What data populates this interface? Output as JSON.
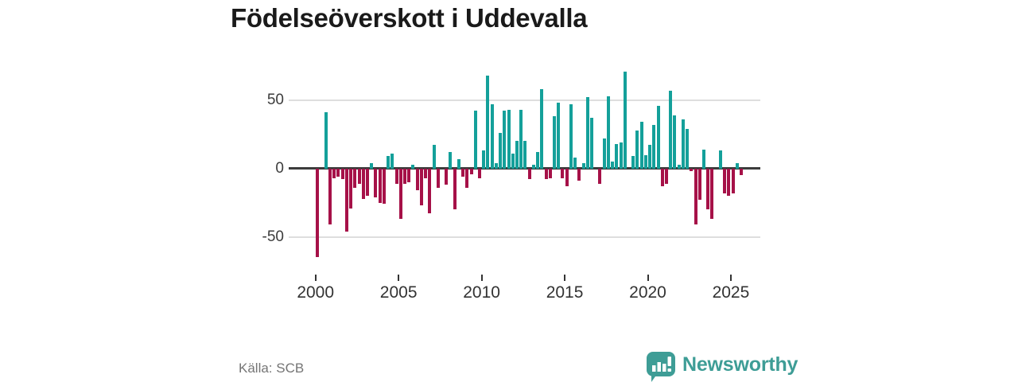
{
  "title": "Födelseöverskott i Uddevalla",
  "source": "Källa: SCB",
  "branding": {
    "logo_text": "Newsworthy"
  },
  "colors": {
    "positive": "#14a09a",
    "negative": "#a61148",
    "zero_line": "#3b3b3b",
    "gridline": "#dedede",
    "brand_teal": "#3e9d96",
    "axis_text": "#3c3c3c",
    "source_text": "#757575"
  },
  "chart_data": {
    "type": "bar",
    "title": "Födelseöverskott i Uddevalla",
    "xlabel": "",
    "ylabel": "",
    "ylim": [
      -75,
      80
    ],
    "grid": "horizontal",
    "y_axis": {
      "ticks": [
        {
          "label": "50",
          "value": 50
        },
        {
          "label": "0",
          "value": 0
        },
        {
          "label": "-50",
          "value": -50
        }
      ]
    },
    "x_axis": {
      "ticks": [
        {
          "label": "2000",
          "year": 2000
        },
        {
          "label": "2005",
          "year": 2005
        },
        {
          "label": "2010",
          "year": 2010
        },
        {
          "label": "2015",
          "year": 2015
        },
        {
          "label": "2020",
          "year": 2020
        },
        {
          "label": "2025",
          "year": 2025
        }
      ]
    },
    "quarters": [
      "2000Q1",
      "2000Q2",
      "2000Q3",
      "2000Q4",
      "2001Q1",
      "2001Q2",
      "2001Q3",
      "2001Q4",
      "2002Q1",
      "2002Q2",
      "2002Q3",
      "2002Q4",
      "2003Q1",
      "2003Q2",
      "2003Q3",
      "2003Q4",
      "2004Q1",
      "2004Q2",
      "2004Q3",
      "2004Q4",
      "2005Q1",
      "2005Q2",
      "2005Q3",
      "2005Q4",
      "2006Q1",
      "2006Q2",
      "2006Q3",
      "2006Q4",
      "2007Q1",
      "2007Q2",
      "2007Q3",
      "2007Q4",
      "2008Q1",
      "2008Q2",
      "2008Q3",
      "2008Q4",
      "2009Q1",
      "2009Q2",
      "2009Q3",
      "2009Q4",
      "2010Q1",
      "2010Q2",
      "2010Q3",
      "2010Q4",
      "2011Q1",
      "2011Q2",
      "2011Q3",
      "2011Q4",
      "2012Q1",
      "2012Q2",
      "2012Q3",
      "2012Q4",
      "2013Q1",
      "2013Q2",
      "2013Q3",
      "2013Q4",
      "2014Q1",
      "2014Q2",
      "2014Q3",
      "2014Q4",
      "2015Q1",
      "2015Q2",
      "2015Q3",
      "2015Q4",
      "2016Q1",
      "2016Q2",
      "2016Q3",
      "2016Q4",
      "2017Q1",
      "2017Q2",
      "2017Q3",
      "2017Q4",
      "2018Q1",
      "2018Q2",
      "2018Q3",
      "2018Q4",
      "2019Q1",
      "2019Q2",
      "2019Q3",
      "2019Q4",
      "2020Q1",
      "2020Q2",
      "2020Q3",
      "2020Q4",
      "2021Q1",
      "2021Q2",
      "2021Q3",
      "2021Q4",
      "2022Q1",
      "2022Q2",
      "2022Q3",
      "2022Q4",
      "2023Q1",
      "2023Q2",
      "2023Q3",
      "2023Q4",
      "2024Q1",
      "2024Q2",
      "2024Q3",
      "2024Q4",
      "2025Q1",
      "2025Q2",
      "2025Q3"
    ],
    "values": [
      -65,
      0,
      41,
      -41,
      -7,
      -6,
      -8,
      -46,
      -29,
      -14,
      -11,
      -22,
      -20,
      4,
      -21,
      -25,
      -26,
      9,
      11,
      -11,
      -37,
      -11,
      -10,
      3,
      -16,
      -27,
      -7,
      -33,
      17,
      -14,
      0,
      -12,
      12,
      -30,
      7,
      -6,
      -14,
      -4,
      42,
      -7,
      13,
      68,
      47,
      4,
      26,
      42,
      43,
      11,
      20,
      43,
      20,
      -8,
      3,
      12,
      58,
      -8,
      -7,
      38,
      48,
      -7,
      -13,
      47,
      8,
      -9,
      4,
      52,
      37,
      0,
      -11,
      22,
      53,
      5,
      18,
      19,
      71,
      0,
      9,
      28,
      34,
      10,
      17,
      32,
      46,
      -13,
      -11,
      57,
      39,
      3,
      36,
      29,
      -2,
      -41,
      -23,
      14,
      -30,
      -37,
      0,
      13,
      -18,
      -20,
      -18,
      4,
      -5
    ]
  }
}
